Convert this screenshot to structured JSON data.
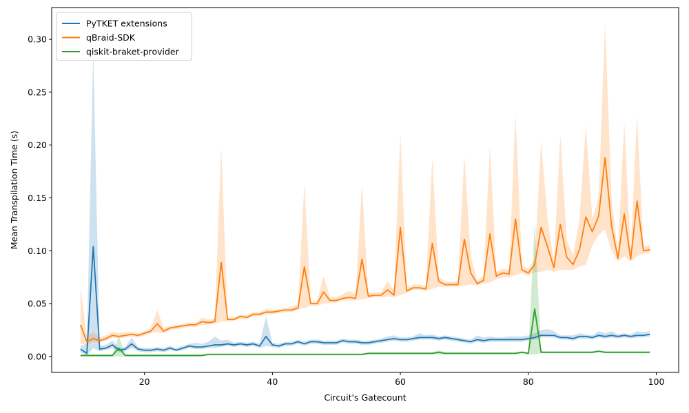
{
  "chart_data": {
    "type": "line",
    "title": "",
    "xlabel": "Circuit's Gatecount",
    "ylabel": "Mean Transpilation Time (s)",
    "xlim": [
      5.5,
      103.5
    ],
    "ylim": [
      -0.015,
      0.33
    ],
    "xticks": [
      20,
      40,
      60,
      80,
      100
    ],
    "yticks": [
      0.0,
      0.05,
      0.1,
      0.15,
      0.2,
      0.25,
      0.3
    ],
    "ytick_labels": [
      "0.00",
      "0.05",
      "0.10",
      "0.15",
      "0.20",
      "0.25",
      "0.30"
    ],
    "grid": false,
    "legend_position": "upper-left",
    "x": [
      10,
      11,
      12,
      13,
      14,
      15,
      16,
      17,
      18,
      19,
      20,
      21,
      22,
      23,
      24,
      25,
      26,
      27,
      28,
      29,
      30,
      31,
      32,
      33,
      34,
      35,
      36,
      37,
      38,
      39,
      40,
      41,
      42,
      43,
      44,
      45,
      46,
      47,
      48,
      49,
      50,
      51,
      52,
      53,
      54,
      55,
      56,
      57,
      58,
      59,
      60,
      61,
      62,
      63,
      64,
      65,
      66,
      67,
      68,
      69,
      70,
      71,
      72,
      73,
      74,
      75,
      76,
      77,
      78,
      79,
      80,
      81,
      82,
      83,
      84,
      85,
      86,
      87,
      88,
      89,
      90,
      91,
      92,
      93,
      94,
      95,
      96,
      97,
      98,
      99
    ],
    "series": [
      {
        "name": "PyTKET extensions",
        "color": "#1f77b4",
        "band_opacity": 0.22,
        "values": [
          0.007,
          0.003,
          0.104,
          0.007,
          0.008,
          0.011,
          0.006,
          0.007,
          0.012,
          0.007,
          0.006,
          0.006,
          0.007,
          0.006,
          0.008,
          0.006,
          0.008,
          0.01,
          0.009,
          0.009,
          0.01,
          0.011,
          0.011,
          0.012,
          0.011,
          0.012,
          0.011,
          0.012,
          0.01,
          0.019,
          0.011,
          0.01,
          0.012,
          0.012,
          0.014,
          0.012,
          0.014,
          0.014,
          0.013,
          0.013,
          0.013,
          0.015,
          0.014,
          0.014,
          0.013,
          0.013,
          0.014,
          0.015,
          0.016,
          0.017,
          0.016,
          0.016,
          0.017,
          0.018,
          0.018,
          0.018,
          0.017,
          0.018,
          0.017,
          0.016,
          0.015,
          0.014,
          0.016,
          0.015,
          0.016,
          0.016,
          0.016,
          0.016,
          0.016,
          0.016,
          0.017,
          0.018,
          0.02,
          0.02,
          0.02,
          0.018,
          0.018,
          0.017,
          0.019,
          0.019,
          0.018,
          0.02,
          0.019,
          0.02,
          0.019,
          0.02,
          0.019,
          0.02,
          0.02,
          0.021
        ],
        "upper": [
          0.01,
          0.012,
          0.29,
          0.01,
          0.011,
          0.015,
          0.008,
          0.009,
          0.018,
          0.009,
          0.008,
          0.008,
          0.009,
          0.008,
          0.01,
          0.008,
          0.01,
          0.012,
          0.013,
          0.012,
          0.014,
          0.019,
          0.015,
          0.016,
          0.013,
          0.014,
          0.013,
          0.014,
          0.012,
          0.038,
          0.013,
          0.012,
          0.014,
          0.014,
          0.016,
          0.014,
          0.016,
          0.016,
          0.015,
          0.015,
          0.015,
          0.017,
          0.016,
          0.016,
          0.015,
          0.015,
          0.016,
          0.017,
          0.019,
          0.02,
          0.018,
          0.018,
          0.019,
          0.022,
          0.02,
          0.021,
          0.019,
          0.02,
          0.019,
          0.018,
          0.017,
          0.016,
          0.02,
          0.018,
          0.019,
          0.018,
          0.018,
          0.019,
          0.019,
          0.019,
          0.02,
          0.022,
          0.025,
          0.026,
          0.024,
          0.02,
          0.02,
          0.02,
          0.022,
          0.021,
          0.02,
          0.024,
          0.022,
          0.024,
          0.021,
          0.022,
          0.021,
          0.024,
          0.023,
          0.024
        ],
        "lower": [
          0.004,
          0.001,
          0.008,
          0.005,
          0.006,
          0.008,
          0.004,
          0.005,
          0.008,
          0.005,
          0.004,
          0.004,
          0.005,
          0.004,
          0.006,
          0.005,
          0.006,
          0.008,
          0.007,
          0.007,
          0.008,
          0.008,
          0.009,
          0.01,
          0.009,
          0.01,
          0.009,
          0.01,
          0.008,
          0.01,
          0.009,
          0.008,
          0.01,
          0.01,
          0.012,
          0.01,
          0.012,
          0.012,
          0.011,
          0.011,
          0.011,
          0.013,
          0.012,
          0.012,
          0.011,
          0.011,
          0.012,
          0.013,
          0.014,
          0.015,
          0.014,
          0.014,
          0.015,
          0.016,
          0.016,
          0.016,
          0.015,
          0.016,
          0.015,
          0.014,
          0.013,
          0.012,
          0.014,
          0.013,
          0.014,
          0.014,
          0.014,
          0.014,
          0.014,
          0.014,
          0.015,
          0.016,
          0.018,
          0.018,
          0.018,
          0.016,
          0.016,
          0.015,
          0.017,
          0.017,
          0.016,
          0.018,
          0.017,
          0.018,
          0.017,
          0.018,
          0.017,
          0.018,
          0.018,
          0.019
        ]
      },
      {
        "name": "qBraid-SDK",
        "color": "#ff7f0e",
        "band_opacity": 0.22,
        "values": [
          0.03,
          0.014,
          0.017,
          0.015,
          0.017,
          0.02,
          0.019,
          0.02,
          0.021,
          0.02,
          0.022,
          0.024,
          0.031,
          0.024,
          0.027,
          0.028,
          0.029,
          0.03,
          0.03,
          0.033,
          0.032,
          0.033,
          0.089,
          0.035,
          0.035,
          0.038,
          0.037,
          0.04,
          0.04,
          0.042,
          0.042,
          0.043,
          0.044,
          0.044,
          0.046,
          0.085,
          0.05,
          0.05,
          0.061,
          0.053,
          0.053,
          0.055,
          0.056,
          0.055,
          0.092,
          0.057,
          0.058,
          0.058,
          0.063,
          0.058,
          0.122,
          0.062,
          0.065,
          0.065,
          0.064,
          0.107,
          0.071,
          0.068,
          0.068,
          0.068,
          0.111,
          0.079,
          0.069,
          0.072,
          0.116,
          0.076,
          0.079,
          0.078,
          0.13,
          0.082,
          0.079,
          0.087,
          0.122,
          0.104,
          0.084,
          0.125,
          0.094,
          0.087,
          0.101,
          0.132,
          0.118,
          0.133,
          0.188,
          0.124,
          0.093,
          0.135,
          0.092,
          0.147,
          0.1,
          0.101
        ],
        "upper": [
          0.066,
          0.019,
          0.023,
          0.018,
          0.02,
          0.023,
          0.022,
          0.023,
          0.023,
          0.022,
          0.024,
          0.027,
          0.044,
          0.027,
          0.029,
          0.03,
          0.031,
          0.032,
          0.032,
          0.037,
          0.035,
          0.036,
          0.199,
          0.037,
          0.037,
          0.04,
          0.039,
          0.042,
          0.042,
          0.045,
          0.044,
          0.045,
          0.046,
          0.047,
          0.049,
          0.164,
          0.052,
          0.053,
          0.076,
          0.056,
          0.056,
          0.059,
          0.062,
          0.059,
          0.163,
          0.06,
          0.061,
          0.061,
          0.071,
          0.062,
          0.211,
          0.066,
          0.068,
          0.068,
          0.067,
          0.188,
          0.075,
          0.071,
          0.071,
          0.071,
          0.19,
          0.095,
          0.072,
          0.076,
          0.199,
          0.08,
          0.083,
          0.082,
          0.23,
          0.086,
          0.083,
          0.092,
          0.204,
          0.13,
          0.09,
          0.21,
          0.11,
          0.096,
          0.13,
          0.219,
          0.13,
          0.15,
          0.316,
          0.15,
          0.099,
          0.222,
          0.099,
          0.229,
          0.103,
          0.106
        ],
        "lower": [
          0.012,
          0.011,
          0.014,
          0.013,
          0.015,
          0.018,
          0.017,
          0.018,
          0.019,
          0.018,
          0.02,
          0.022,
          0.023,
          0.022,
          0.025,
          0.026,
          0.027,
          0.028,
          0.028,
          0.03,
          0.03,
          0.031,
          0.033,
          0.033,
          0.034,
          0.036,
          0.035,
          0.038,
          0.038,
          0.04,
          0.04,
          0.041,
          0.042,
          0.042,
          0.044,
          0.046,
          0.048,
          0.048,
          0.05,
          0.051,
          0.051,
          0.053,
          0.053,
          0.053,
          0.054,
          0.055,
          0.056,
          0.056,
          0.057,
          0.056,
          0.058,
          0.06,
          0.063,
          0.063,
          0.062,
          0.064,
          0.066,
          0.066,
          0.066,
          0.066,
          0.067,
          0.068,
          0.067,
          0.069,
          0.07,
          0.073,
          0.075,
          0.075,
          0.077,
          0.079,
          0.076,
          0.08,
          0.08,
          0.082,
          0.08,
          0.082,
          0.082,
          0.082,
          0.085,
          0.087,
          0.105,
          0.115,
          0.12,
          0.1,
          0.09,
          0.095,
          0.09,
          0.095,
          0.097,
          0.098
        ]
      },
      {
        "name": "qiskit-braket-provider",
        "color": "#2ca02c",
        "band_opacity": 0.22,
        "values": [
          0.001,
          0.001,
          0.001,
          0.001,
          0.001,
          0.001,
          0.008,
          0.001,
          0.001,
          0.001,
          0.001,
          0.001,
          0.001,
          0.001,
          0.001,
          0.001,
          0.001,
          0.001,
          0.001,
          0.001,
          0.002,
          0.002,
          0.002,
          0.002,
          0.002,
          0.002,
          0.002,
          0.002,
          0.002,
          0.002,
          0.002,
          0.002,
          0.002,
          0.002,
          0.002,
          0.002,
          0.002,
          0.002,
          0.002,
          0.002,
          0.002,
          0.002,
          0.002,
          0.002,
          0.002,
          0.003,
          0.003,
          0.003,
          0.003,
          0.003,
          0.003,
          0.003,
          0.003,
          0.003,
          0.003,
          0.003,
          0.004,
          0.003,
          0.003,
          0.003,
          0.003,
          0.003,
          0.003,
          0.003,
          0.003,
          0.003,
          0.003,
          0.003,
          0.003,
          0.004,
          0.003,
          0.045,
          0.004,
          0.004,
          0.004,
          0.004,
          0.004,
          0.004,
          0.004,
          0.004,
          0.004,
          0.005,
          0.004,
          0.004,
          0.004,
          0.004,
          0.004,
          0.004,
          0.004,
          0.004
        ],
        "upper": [
          0.002,
          0.002,
          0.002,
          0.002,
          0.002,
          0.002,
          0.019,
          0.002,
          0.002,
          0.002,
          0.002,
          0.002,
          0.002,
          0.002,
          0.002,
          0.002,
          0.002,
          0.002,
          0.002,
          0.002,
          0.003,
          0.003,
          0.003,
          0.003,
          0.003,
          0.003,
          0.003,
          0.003,
          0.003,
          0.003,
          0.003,
          0.003,
          0.003,
          0.003,
          0.003,
          0.003,
          0.003,
          0.003,
          0.003,
          0.003,
          0.003,
          0.003,
          0.003,
          0.003,
          0.003,
          0.004,
          0.004,
          0.004,
          0.004,
          0.004,
          0.004,
          0.004,
          0.004,
          0.004,
          0.004,
          0.004,
          0.006,
          0.004,
          0.004,
          0.004,
          0.004,
          0.004,
          0.004,
          0.004,
          0.004,
          0.004,
          0.004,
          0.004,
          0.004,
          0.005,
          0.004,
          0.127,
          0.005,
          0.005,
          0.005,
          0.005,
          0.005,
          0.005,
          0.005,
          0.005,
          0.005,
          0.006,
          0.005,
          0.005,
          0.005,
          0.005,
          0.005,
          0.005,
          0.005,
          0.005
        ],
        "lower": [
          0.0,
          0.0,
          0.0,
          0.0,
          0.0,
          0.0,
          0.0,
          0.0,
          0.0,
          0.0,
          0.0,
          0.0,
          0.0,
          0.0,
          0.0,
          0.0,
          0.0,
          0.0,
          0.0,
          0.0,
          0.001,
          0.001,
          0.001,
          0.001,
          0.001,
          0.001,
          0.001,
          0.001,
          0.001,
          0.001,
          0.001,
          0.001,
          0.001,
          0.001,
          0.001,
          0.001,
          0.001,
          0.001,
          0.001,
          0.001,
          0.001,
          0.001,
          0.001,
          0.001,
          0.001,
          0.002,
          0.002,
          0.002,
          0.002,
          0.002,
          0.002,
          0.002,
          0.002,
          0.002,
          0.002,
          0.002,
          0.002,
          0.002,
          0.002,
          0.002,
          0.002,
          0.002,
          0.002,
          0.002,
          0.002,
          0.002,
          0.002,
          0.002,
          0.002,
          0.003,
          0.002,
          0.002,
          0.003,
          0.003,
          0.003,
          0.003,
          0.003,
          0.003,
          0.003,
          0.003,
          0.003,
          0.004,
          0.003,
          0.003,
          0.003,
          0.003,
          0.003,
          0.003,
          0.003,
          0.003
        ]
      }
    ]
  }
}
